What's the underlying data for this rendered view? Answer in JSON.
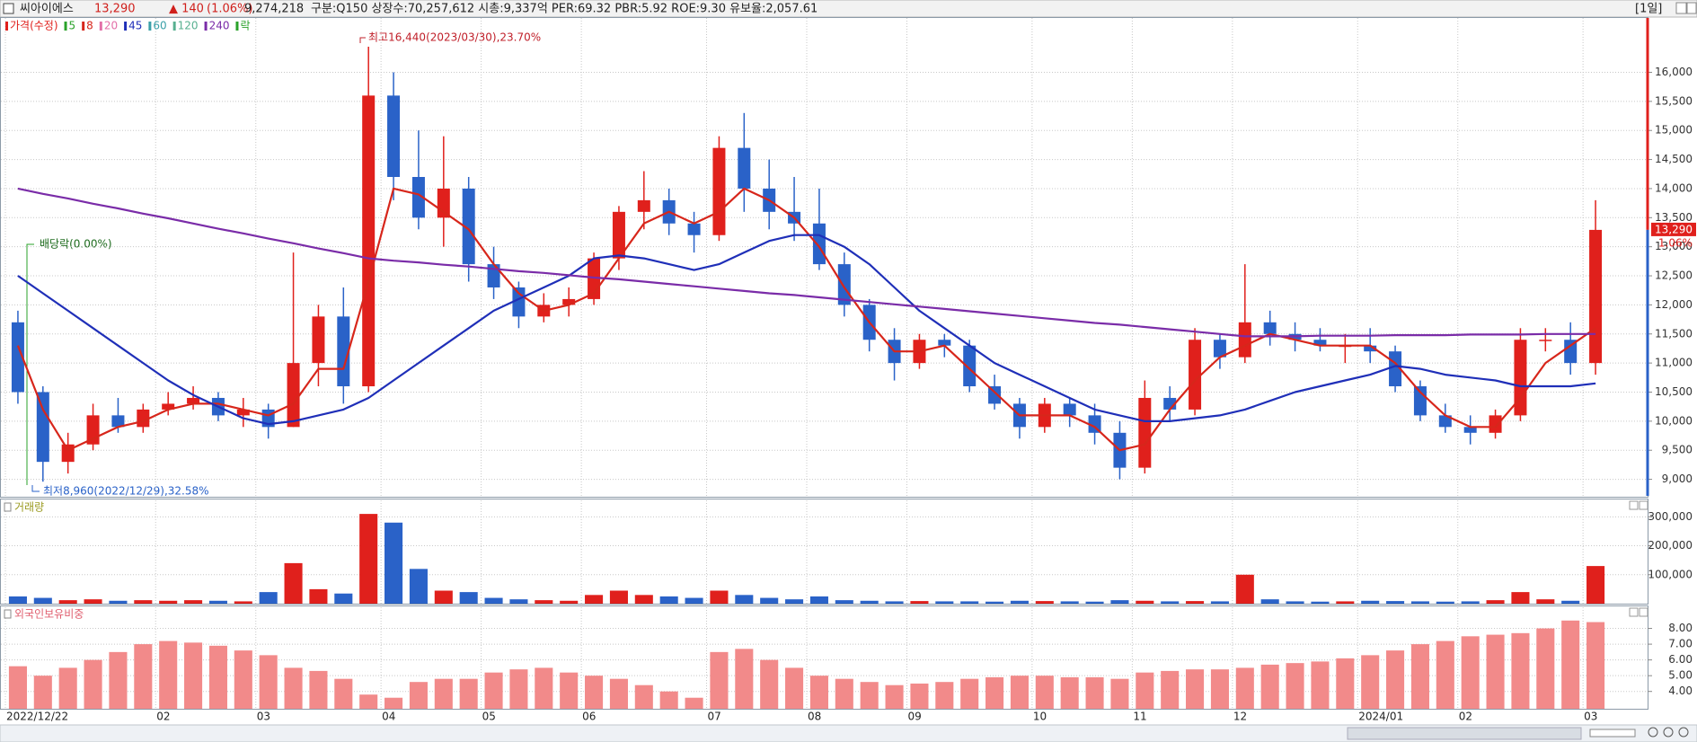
{
  "header": {
    "name": "씨아이에스",
    "price": "13,290",
    "change": "▲ 140",
    "change_pct": "(1.06%)",
    "volume": "9,274,218",
    "info": "구분:Q150 상장수:70,257,612 시총:9,337억 PER:69.32 PBR:5.92 ROE:9.30 유보율:2,057.61",
    "period": "[1일]"
  },
  "chart_data": [
    {
      "type": "candlestick",
      "price_name": "가격(수정)",
      "up_color": "#e0201c",
      "down_color": "#2a62c8",
      "categories": [
        "2022/12/22",
        null,
        null,
        null,
        null,
        null,
        "02",
        null,
        null,
        null,
        "03",
        null,
        null,
        null,
        null,
        "04",
        null,
        null,
        null,
        "05",
        null,
        null,
        null,
        "06",
        null,
        null,
        null,
        null,
        "07",
        null,
        null,
        null,
        "08",
        null,
        null,
        null,
        "09",
        null,
        null,
        null,
        null,
        "10",
        null,
        null,
        null,
        "11",
        null,
        null,
        null,
        "12",
        null,
        null,
        null,
        null,
        "2024/01",
        null,
        null,
        null,
        "02",
        null,
        null,
        null,
        null,
        "03"
      ],
      "open": [
        11700,
        10500,
        9300,
        9600,
        10100,
        9900,
        10200,
        10300,
        10400,
        10100,
        10200,
        9900,
        11000,
        11800,
        10600,
        15600,
        14200,
        13500,
        14000,
        12700,
        12300,
        11800,
        12000,
        12100,
        12800,
        13600,
        13800,
        13400,
        13200,
        14700,
        14000,
        13600,
        13400,
        12700,
        12000,
        11400,
        11000,
        11400,
        11300,
        10600,
        10300,
        9900,
        10300,
        10100,
        9800,
        9200,
        10400,
        10200,
        11400,
        11100,
        11700,
        11500,
        11400,
        11300,
        11300,
        11200,
        10600,
        10100,
        9900,
        9800,
        10100,
        11400,
        11400,
        11000
      ],
      "high": [
        11900,
        10600,
        9800,
        10300,
        10400,
        10300,
        10500,
        10600,
        10500,
        10400,
        10300,
        12900,
        12000,
        12300,
        16440,
        16000,
        15000,
        14900,
        14200,
        13000,
        12400,
        12200,
        12300,
        12900,
        13700,
        14300,
        14000,
        13600,
        14900,
        15300,
        14500,
        14200,
        14000,
        12900,
        12100,
        11600,
        11500,
        11500,
        11400,
        10800,
        10400,
        10400,
        10400,
        10300,
        10000,
        10700,
        10600,
        11600,
        11500,
        12700,
        11900,
        11700,
        11600,
        11500,
        11600,
        11300,
        10700,
        10300,
        10100,
        10200,
        11600,
        11600,
        11700,
        13800
      ],
      "low": [
        10300,
        8960,
        9100,
        9500,
        9800,
        9800,
        10100,
        10200,
        10000,
        9900,
        9700,
        9900,
        10600,
        10300,
        10500,
        13800,
        13300,
        13000,
        12400,
        12100,
        11600,
        11700,
        11800,
        12000,
        12600,
        13300,
        13200,
        12900,
        13100,
        13600,
        13300,
        13100,
        12600,
        11800,
        11200,
        10700,
        10900,
        11100,
        10500,
        10200,
        9700,
        9800,
        9900,
        9600,
        9000,
        9100,
        10000,
        10100,
        10900,
        11000,
        11300,
        11200,
        11200,
        11000,
        11000,
        10500,
        10000,
        9800,
        9600,
        9700,
        10000,
        11200,
        10800,
        10800
      ],
      "close": [
        10500,
        9300,
        9600,
        10100,
        9900,
        10200,
        10300,
        10400,
        10100,
        10200,
        9900,
        11000,
        11800,
        10600,
        15600,
        14200,
        13500,
        14000,
        12700,
        12300,
        11800,
        12000,
        12100,
        12800,
        13600,
        13800,
        13400,
        13200,
        14700,
        14000,
        13600,
        13400,
        12700,
        12000,
        11400,
        11000,
        11400,
        11300,
        10600,
        10300,
        9900,
        10300,
        10100,
        9800,
        9200,
        10400,
        10200,
        11400,
        11100,
        11700,
        11500,
        11400,
        11300,
        11300,
        11200,
        10600,
        10100,
        9900,
        9800,
        10100,
        11400,
        11400,
        11000,
        13290
      ],
      "series": [
        {
          "name": "5",
          "color": "#2aa22a"
        },
        {
          "name": "8",
          "color": "#d7261b",
          "values": [
            11300,
            10200,
            9500,
            9700,
            9900,
            10000,
            10200,
            10300,
            10300,
            10200,
            10100,
            10300,
            10900,
            10900,
            12400,
            14000,
            13900,
            13600,
            13300,
            12700,
            12200,
            11900,
            12000,
            12200,
            12800,
            13400,
            13600,
            13400,
            13600,
            14000,
            13800,
            13500,
            13000,
            12300,
            11700,
            11200,
            11200,
            11300,
            10900,
            10500,
            10100,
            10100,
            10100,
            9900,
            9500,
            9600,
            10200,
            10700,
            11100,
            11300,
            11500,
            11400,
            11300,
            11300,
            11300,
            11000,
            10500,
            10100,
            9900,
            9900,
            10400,
            11000,
            11300,
            11600
          ]
        },
        {
          "name": "20",
          "color": "#e36fa8"
        },
        {
          "name": "45",
          "color": "#1f2fb8",
          "values": [
            12500,
            12200,
            11900,
            11600,
            11300,
            11000,
            10700,
            10450,
            10250,
            10050,
            9950,
            10000,
            10100,
            10200,
            10400,
            10700,
            11000,
            11300,
            11600,
            11900,
            12100,
            12300,
            12500,
            12800,
            12850,
            12800,
            12700,
            12600,
            12700,
            12900,
            13100,
            13200,
            13200,
            13000,
            12700,
            12300,
            11900,
            11600,
            11300,
            11000,
            10800,
            10600,
            10400,
            10200,
            10100,
            10000,
            10000,
            10050,
            10100,
            10200,
            10350,
            10500,
            10600,
            10700,
            10800,
            10950,
            10900,
            10800,
            10750,
            10700,
            10600,
            10600,
            10600,
            10650
          ]
        },
        {
          "name": "60",
          "color": "#3aa0a8"
        },
        {
          "name": "120",
          "color": "#58b090"
        },
        {
          "name": "240",
          "color": "#7a2ca8",
          "values": [
            14000,
            13910,
            13830,
            13740,
            13660,
            13570,
            13490,
            13400,
            13310,
            13230,
            13140,
            13060,
            12970,
            12890,
            12800,
            12760,
            12730,
            12690,
            12660,
            12620,
            12580,
            12550,
            12510,
            12470,
            12440,
            12400,
            12360,
            12320,
            12280,
            12240,
            12200,
            12170,
            12130,
            12090,
            12050,
            12010,
            11970,
            11930,
            11890,
            11850,
            11810,
            11770,
            11730,
            11690,
            11660,
            11620,
            11580,
            11540,
            11500,
            11460,
            11460,
            11460,
            11470,
            11470,
            11470,
            11480,
            11480,
            11480,
            11490,
            11490,
            11490,
            11500,
            11500,
            11500
          ]
        }
      ],
      "event_name": "락",
      "event_color": "#2aa22a",
      "ylim": [
        8700,
        16950
      ],
      "yticks": [
        {
          "value": 9000,
          "label": "9,000"
        },
        {
          "value": 9500,
          "label": "9,500"
        },
        {
          "value": 10000,
          "label": "10,000"
        },
        {
          "value": 10500,
          "label": "10,500"
        },
        {
          "value": 11000,
          "label": "11,000"
        },
        {
          "value": 11500,
          "label": "11,500"
        },
        {
          "value": 12000,
          "label": "12,000"
        },
        {
          "value": 12500,
          "label": "12,500"
        },
        {
          "value": 13000,
          "label": "13,000"
        },
        {
          "value": 13500,
          "label": "13,500"
        },
        {
          "value": 14000,
          "label": "14,000"
        },
        {
          "value": 14500,
          "label": "14,500"
        },
        {
          "value": 15000,
          "label": "15,000"
        },
        {
          "value": 15500,
          "label": "15,500"
        },
        {
          "value": 16000,
          "label": "16,000"
        }
      ],
      "grid": true,
      "high_label": "최고16,440(2023/03/30),23.70%",
      "low_label": "최저8,960(2022/12/29),32.58%",
      "dividend_label": "배당락(0.00%)",
      "last_price_label": "13,290",
      "last_change_label": "1.06%"
    },
    {
      "type": "bar",
      "title": "거래량",
      "title_color": "#9a9a20",
      "values": [
        25000,
        20000,
        12000,
        15000,
        10000,
        12000,
        10000,
        12000,
        10000,
        8000,
        40000,
        140000,
        50000,
        35000,
        310000,
        280000,
        120000,
        45000,
        40000,
        20000,
        15000,
        12000,
        10000,
        30000,
        45000,
        30000,
        25000,
        20000,
        45000,
        30000,
        20000,
        15000,
        25000,
        12000,
        10000,
        8000,
        9000,
        8000,
        8000,
        7000,
        10000,
        9000,
        8000,
        7000,
        12000,
        10000,
        8000,
        9000,
        8000,
        100000,
        15000,
        8000,
        7000,
        8000,
        10000,
        9000,
        8000,
        7000,
        8000,
        12000,
        40000,
        15000,
        10000,
        130000
      ],
      "ylim": [
        0,
        360000
      ],
      "yticks": [
        {
          "value": 100000,
          "label": "100,000"
        },
        {
          "value": 200000,
          "label": "200,000"
        },
        {
          "value": 300000,
          "label": "300,000"
        }
      ],
      "grid": true
    },
    {
      "type": "bar",
      "title": "외국인보유비중",
      "title_color": "#e06070",
      "color": "#f28a8a",
      "values": [
        5.6,
        5.0,
        5.5,
        6.0,
        6.5,
        7.0,
        7.2,
        7.1,
        6.9,
        6.6,
        6.3,
        5.5,
        5.3,
        4.8,
        3.8,
        3.6,
        4.6,
        4.8,
        4.8,
        5.2,
        5.4,
        5.5,
        5.2,
        5.0,
        4.8,
        4.4,
        4.0,
        3.6,
        6.5,
        6.7,
        6.0,
        5.5,
        5.0,
        4.8,
        4.6,
        4.4,
        4.5,
        4.6,
        4.8,
        4.9,
        5.0,
        5.0,
        4.9,
        4.9,
        4.8,
        5.2,
        5.3,
        5.4,
        5.4,
        5.5,
        5.7,
        5.8,
        5.9,
        6.1,
        6.3,
        6.6,
        7.0,
        7.2,
        7.5,
        7.6,
        7.7,
        8.0,
        8.5,
        8.4
      ],
      "ylim": [
        2.9,
        9.4
      ],
      "yticks": [
        {
          "value": 4,
          "label": "4.00"
        },
        {
          "value": 5,
          "label": "5.00"
        },
        {
          "value": 6,
          "label": "6.00"
        },
        {
          "value": 7,
          "label": "7.00"
        },
        {
          "value": 8,
          "label": "8.00"
        }
      ],
      "grid": true
    }
  ]
}
